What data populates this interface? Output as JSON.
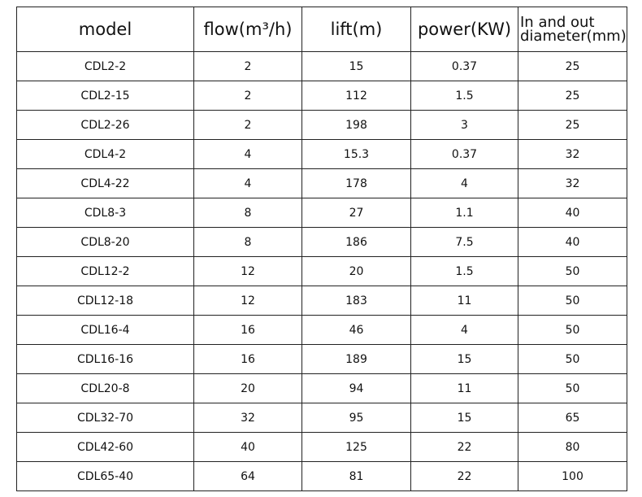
{
  "table": {
    "header": [
      "model",
      "flow(m³/h)",
      "lift(m)",
      "power(KW)",
      "In and out diameter(mm)"
    ],
    "rows": [
      [
        "CDL2-2",
        "2",
        "15",
        "0.37",
        "25"
      ],
      [
        "CDL2-15",
        "2",
        "112",
        "1.5",
        "25"
      ],
      [
        "CDL2-26",
        "2",
        "198",
        "3",
        "25"
      ],
      [
        "CDL4-2",
        "4",
        "15.3",
        "0.37",
        "32"
      ],
      [
        "CDL4-22",
        "4",
        "178",
        "4",
        "32"
      ],
      [
        "CDL8-3",
        "8",
        "27",
        "1.1",
        "40"
      ],
      [
        "CDL8-20",
        "8",
        "186",
        "7.5",
        "40"
      ],
      [
        "CDL12-2",
        "12",
        "20",
        "1.5",
        "50"
      ],
      [
        "CDL12-18",
        "12",
        "183",
        "11",
        "50"
      ],
      [
        "CDL16-4",
        "16",
        "46",
        "4",
        "50"
      ],
      [
        "CDL16-16",
        "16",
        "189",
        "15",
        "50"
      ],
      [
        "CDL20-8",
        "20",
        "94",
        "11",
        "50"
      ],
      [
        "CDL32-70",
        "32",
        "95",
        "15",
        "65"
      ],
      [
        "CDL42-60",
        "40",
        "125",
        "22",
        "80"
      ],
      [
        "CDL65-40",
        "64",
        "81",
        "22",
        "100"
      ]
    ]
  }
}
